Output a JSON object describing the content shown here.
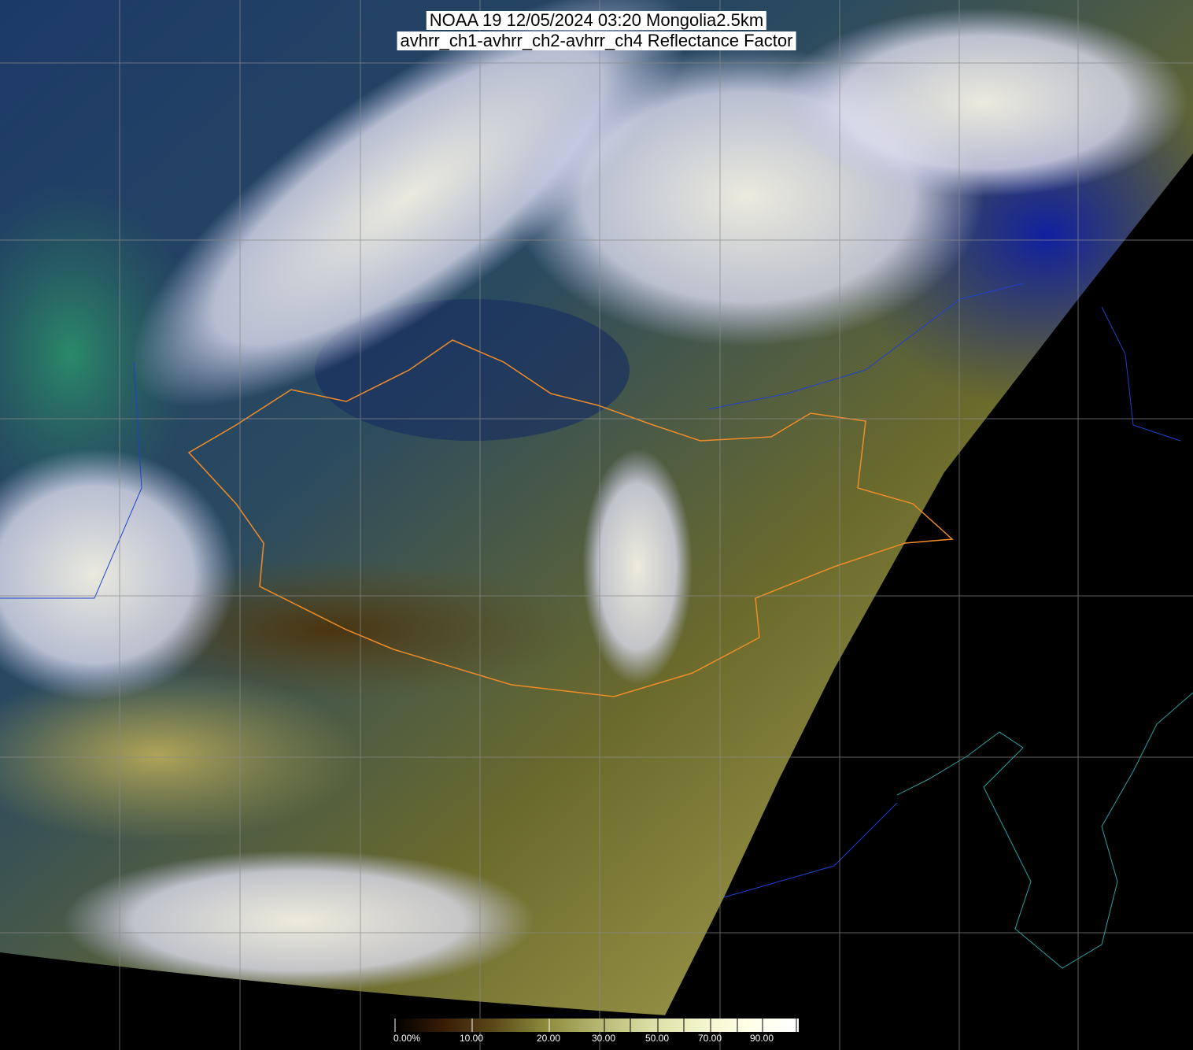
{
  "header": {
    "title_line1": "NOAA 19 12/05/2024 03:20 Mongolia2.5km",
    "title_line2": "avhrr_ch1-avhrr_ch2-avhrr_ch4 Reflectance Factor"
  },
  "colorbar": {
    "labels": [
      "0.00%",
      "10.00",
      "20.00",
      "30.00",
      "50.00",
      "70.00",
      "90.00"
    ],
    "colors": [
      "#000000",
      "#3a1c06",
      "#5a4a1a",
      "#8c8a3c",
      "#b4b470",
      "#d8dca0",
      "#f0f4c8",
      "#ffffe8",
      "#ffffff"
    ]
  },
  "map": {
    "colors": {
      "cloud": "#e8e8f4",
      "cloud_yellow": "#f0ecb8",
      "forest": "#1c3a68",
      "steppe": "#6c7030",
      "desert": "#a8a050",
      "water": "#10207a",
      "no_data": "#000000",
      "mongolia_border": "#f08c28",
      "coastline": "#2aa0a0",
      "country_border": "#2040d0",
      "grid": "#8a8a8a"
    }
  }
}
